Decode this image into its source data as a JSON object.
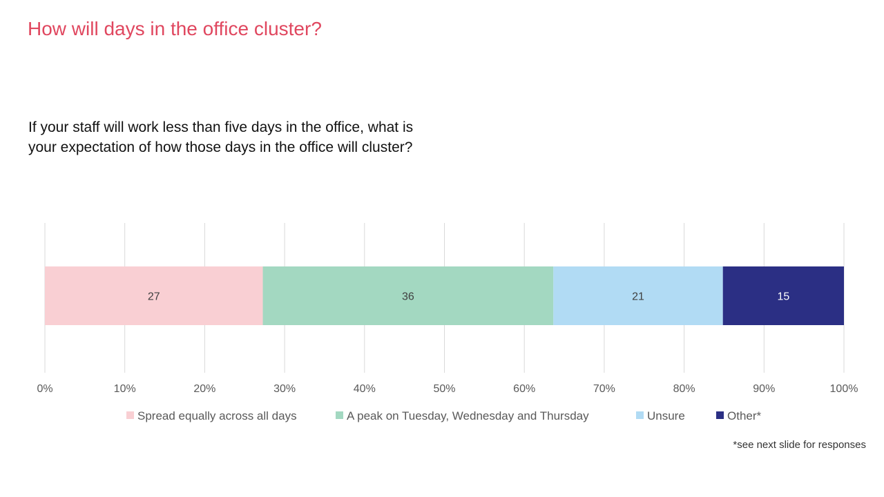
{
  "title": "How will days in the office cluster?",
  "question": "If your staff will work less than five days in the office, what is your expectation of how those days in the office will cluster?",
  "footnote": "*see next slide for responses",
  "chart_data": {
    "type": "bar",
    "orientation": "horizontal",
    "stacked": true,
    "normalized": true,
    "categories": [
      ""
    ],
    "series": [
      {
        "name": "Spread equally across all days",
        "values": [
          27
        ],
        "label": "27",
        "color": "#f9cfd3"
      },
      {
        "name": "A peak on Tuesday, Wednesday and Thursday",
        "values": [
          36
        ],
        "label": "36",
        "color": "#a3d8c1"
      },
      {
        "name": "Unsure",
        "values": [
          21
        ],
        "label": "21",
        "color": "#b1dbf4"
      },
      {
        "name": "Other*",
        "values": [
          15
        ],
        "label": "15",
        "color": "#2b2f84"
      }
    ],
    "x_ticks": [
      "0%",
      "10%",
      "20%",
      "30%",
      "40%",
      "50%",
      "60%",
      "70%",
      "80%",
      "90%",
      "100%"
    ],
    "xlim": [
      0,
      100
    ],
    "grid": "vertical",
    "legend": "bottom"
  }
}
